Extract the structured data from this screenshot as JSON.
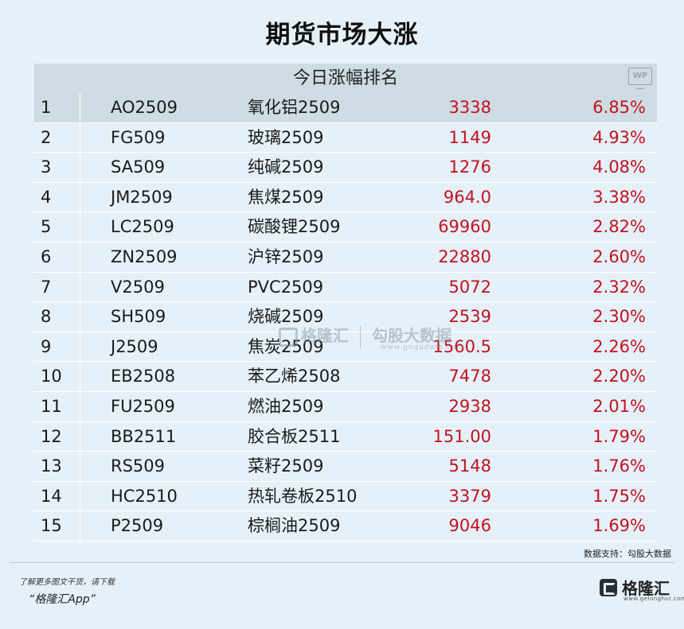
{
  "title": "期货市场大涨",
  "table": {
    "header": "今日涨幅排名",
    "header_logo": "WP",
    "rows": [
      {
        "rank": "1",
        "code": "AO2509",
        "name": "氧化铝2509",
        "price": "3338",
        "change": "6.85%"
      },
      {
        "rank": "2",
        "code": "FG509",
        "name": "玻璃2509",
        "price": "1149",
        "change": "4.93%"
      },
      {
        "rank": "3",
        "code": "SA509",
        "name": "纯碱2509",
        "price": "1276",
        "change": "4.08%"
      },
      {
        "rank": "4",
        "code": "JM2509",
        "name": "焦煤2509",
        "price": "964.0",
        "change": "3.38%"
      },
      {
        "rank": "5",
        "code": "LC2509",
        "name": "碳酸锂2509",
        "price": "69960",
        "change": "2.82%"
      },
      {
        "rank": "6",
        "code": "ZN2509",
        "name": "沪锌2509",
        "price": "22880",
        "change": "2.60%"
      },
      {
        "rank": "7",
        "code": "V2509",
        "name": "PVC2509",
        "price": "5072",
        "change": "2.32%"
      },
      {
        "rank": "8",
        "code": "SH509",
        "name": "烧碱2509",
        "price": "2539",
        "change": "2.30%"
      },
      {
        "rank": "9",
        "code": "J2509",
        "name": "焦炭2509",
        "price": "1560.5",
        "change": "2.26%"
      },
      {
        "rank": "10",
        "code": "EB2508",
        "name": "苯乙烯2508",
        "price": "7478",
        "change": "2.20%"
      },
      {
        "rank": "11",
        "code": "FU2509",
        "name": "燃油2509",
        "price": "2938",
        "change": "2.01%"
      },
      {
        "rank": "12",
        "code": "BB2511",
        "name": "胶合板2511",
        "price": "151.00",
        "change": "1.79%"
      },
      {
        "rank": "13",
        "code": "RS509",
        "name": "菜籽2509",
        "price": "5148",
        "change": "1.76%"
      },
      {
        "rank": "14",
        "code": "HC2510",
        "name": "热轧卷板2510",
        "price": "3379",
        "change": "1.75%"
      },
      {
        "rank": "15",
        "code": "P2509",
        "name": "棕榈油2509",
        "price": "9046",
        "change": "1.69%"
      }
    ]
  },
  "watermark": {
    "brand": "格隆汇",
    "partner": "勾股大数据",
    "url": "www.gogudata.com"
  },
  "source": "数据支持：勾股大数据",
  "footer": {
    "promo": "了解更多图文干货，请下载",
    "app_name": "“格隆汇App”",
    "brand": "格隆汇",
    "brand_url": "www.gelonghui.com"
  },
  "colors": {
    "background": "#e6f0f8",
    "header_bg": "#cfdce3",
    "up_red": "#c1121f"
  }
}
